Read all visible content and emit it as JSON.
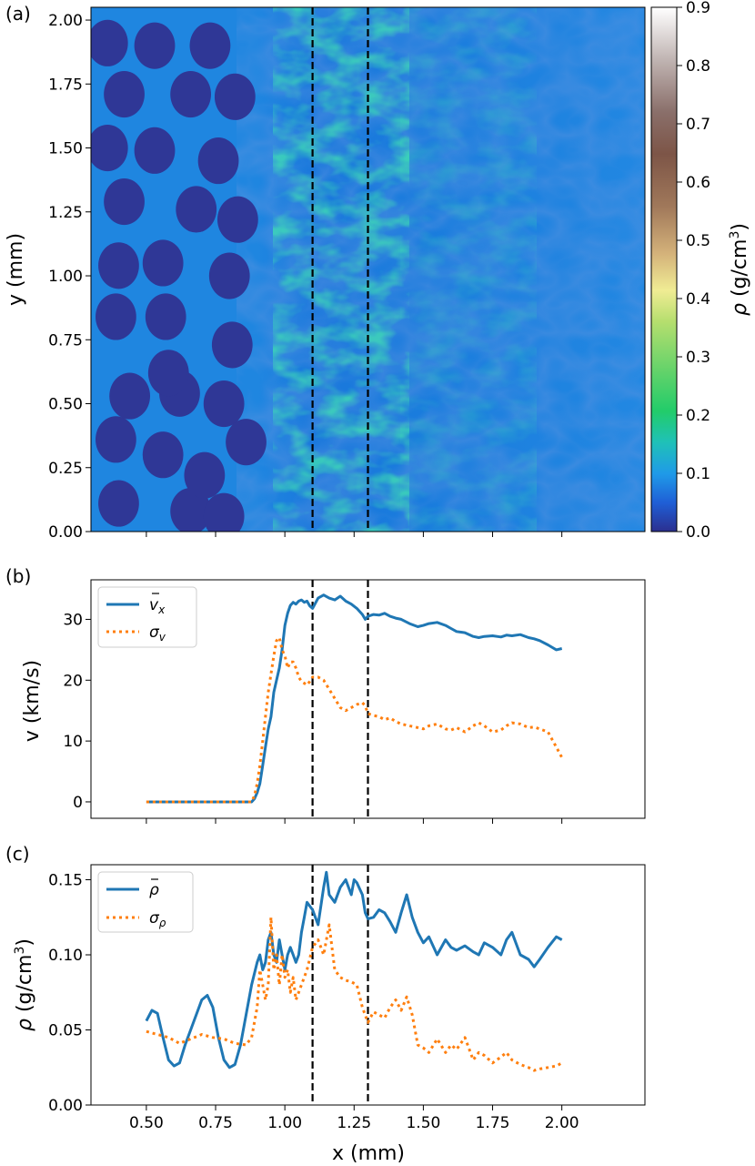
{
  "chart_data": [
    {
      "type": "heatmap",
      "panel_label": "(a)",
      "ylabel": "y (mm)",
      "ylim": [
        0.0,
        2.05
      ],
      "xlim": [
        0.3,
        2.3
      ],
      "yticks": [
        "0.00",
        "0.25",
        "0.50",
        "0.75",
        "1.00",
        "1.25",
        "1.50",
        "1.75",
        "2.00"
      ],
      "ytick_values": [
        0.0,
        0.25,
        0.5,
        0.75,
        1.0,
        1.25,
        1.5,
        1.75,
        2.0
      ],
      "colorbar": {
        "label_symbol": "ρ",
        "label_text": " (g/cm",
        "label_sup": "3",
        "label_close": ")",
        "range": [
          0.0,
          0.9
        ],
        "ticks": [
          "0.0",
          "0.1",
          "0.2",
          "0.3",
          "0.4",
          "0.5",
          "0.6",
          "0.7",
          "0.8",
          "0.9"
        ],
        "tick_values": [
          0.0,
          0.1,
          0.2,
          0.3,
          0.4,
          0.5,
          0.6,
          0.7,
          0.8,
          0.9
        ]
      },
      "vlines_x": [
        1.1,
        1.3
      ],
      "particles": [
        {
          "x": 0.36,
          "y": 1.91
        },
        {
          "x": 0.36,
          "y": 1.5
        },
        {
          "x": 0.4,
          "y": 1.04
        },
        {
          "x": 0.39,
          "y": 0.84
        },
        {
          "x": 0.44,
          "y": 0.53
        },
        {
          "x": 0.4,
          "y": 0.11
        },
        {
          "x": 0.39,
          "y": 0.36
        },
        {
          "x": 0.42,
          "y": 1.71
        },
        {
          "x": 0.42,
          "y": 1.29
        },
        {
          "x": 0.53,
          "y": 1.9
        },
        {
          "x": 0.53,
          "y": 1.49
        },
        {
          "x": 0.56,
          "y": 1.05
        },
        {
          "x": 0.56,
          "y": 0.3
        },
        {
          "x": 0.62,
          "y": 0.54
        },
        {
          "x": 0.58,
          "y": 0.62
        },
        {
          "x": 0.57,
          "y": 0.84
        },
        {
          "x": 0.66,
          "y": 0.08
        },
        {
          "x": 0.66,
          "y": 1.71
        },
        {
          "x": 0.68,
          "y": 1.26
        },
        {
          "x": 0.71,
          "y": 0.22
        },
        {
          "x": 0.78,
          "y": 0.06
        },
        {
          "x": 0.73,
          "y": 1.9
        },
        {
          "x": 0.76,
          "y": 1.45
        },
        {
          "x": 0.78,
          "y": 0.5
        },
        {
          "x": 0.81,
          "y": 0.73
        },
        {
          "x": 0.8,
          "y": 1.0
        },
        {
          "x": 0.83,
          "y": 1.22
        },
        {
          "x": 0.82,
          "y": 1.7
        },
        {
          "x": 0.86,
          "y": 0.35
        }
      ]
    },
    {
      "type": "line",
      "panel_label": "(b)",
      "ylabel": "v (km/s)",
      "xlim": [
        0.3,
        2.3
      ],
      "ylim": [
        -2.7,
        36.5
      ],
      "yticks": [
        "0",
        "10",
        "20",
        "30"
      ],
      "ytick_values": [
        0,
        10,
        20,
        30
      ],
      "vlines_x": [
        1.1,
        1.3
      ],
      "series": [
        {
          "name": "v_x mean",
          "legend_base": "v",
          "legend_sub": "x",
          "style": "solid",
          "color": "#1f77b4",
          "x": [
            0.5,
            0.88,
            0.89,
            0.9,
            0.91,
            0.92,
            0.93,
            0.94,
            0.95,
            0.96,
            0.97,
            0.98,
            0.99,
            1.0,
            1.01,
            1.02,
            1.03,
            1.04,
            1.05,
            1.06,
            1.07,
            1.08,
            1.09,
            1.1,
            1.12,
            1.14,
            1.16,
            1.18,
            1.2,
            1.22,
            1.24,
            1.26,
            1.28,
            1.29,
            1.3,
            1.32,
            1.34,
            1.36,
            1.38,
            1.4,
            1.42,
            1.45,
            1.48,
            1.5,
            1.52,
            1.55,
            1.58,
            1.6,
            1.62,
            1.65,
            1.68,
            1.7,
            1.72,
            1.75,
            1.78,
            1.8,
            1.82,
            1.85,
            1.88,
            1.9,
            1.92,
            1.95,
            1.98,
            2.0
          ],
          "y": [
            0,
            0,
            0.5,
            1.5,
            3,
            6,
            9,
            12,
            14,
            18,
            20,
            22,
            25,
            29,
            31,
            32.3,
            32.8,
            32.5,
            33,
            33.2,
            32.8,
            33,
            32.2,
            31.8,
            33.5,
            34,
            33.5,
            33.2,
            33.8,
            33,
            32.5,
            31.8,
            30.8,
            30,
            30.5,
            30.8,
            30.7,
            31,
            30.5,
            30.2,
            30,
            29.3,
            28.8,
            29,
            29.3,
            29.5,
            29,
            28.5,
            28,
            27.8,
            27.2,
            27,
            27.2,
            27.3,
            27.1,
            27.4,
            27.3,
            27.5,
            27,
            26.8,
            26.5,
            25.8,
            25,
            25.2
          ]
        },
        {
          "name": "sigma_v",
          "legend_base": "σ",
          "legend_sub": "v",
          "style": "dotted",
          "color": "#ff7f0e",
          "x": [
            0.5,
            0.88,
            0.89,
            0.9,
            0.91,
            0.92,
            0.93,
            0.94,
            0.95,
            0.96,
            0.97,
            0.98,
            0.99,
            1.0,
            1.01,
            1.02,
            1.03,
            1.04,
            1.05,
            1.06,
            1.07,
            1.08,
            1.09,
            1.1,
            1.12,
            1.14,
            1.16,
            1.18,
            1.2,
            1.22,
            1.24,
            1.26,
            1.28,
            1.29,
            1.3,
            1.32,
            1.34,
            1.36,
            1.38,
            1.4,
            1.42,
            1.45,
            1.48,
            1.5,
            1.52,
            1.55,
            1.58,
            1.6,
            1.62,
            1.65,
            1.68,
            1.7,
            1.72,
            1.75,
            1.78,
            1.8,
            1.82,
            1.85,
            1.88,
            1.9,
            1.92,
            1.95,
            1.98,
            2.0
          ],
          "y": [
            0,
            0,
            1,
            3,
            6,
            10,
            14,
            18,
            21,
            24,
            26.5,
            27,
            25,
            24,
            22,
            23,
            23,
            22,
            20.5,
            19.8,
            19.5,
            19.2,
            19.8,
            20.5,
            20.5,
            20,
            18.5,
            17,
            15.5,
            15,
            15.5,
            16,
            16.3,
            15.8,
            14.5,
            14.2,
            14,
            13.5,
            13.8,
            13.2,
            12.8,
            12.5,
            12.2,
            12,
            12.5,
            12.8,
            12,
            11.8,
            12.2,
            11.5,
            12.5,
            13,
            12.5,
            11.5,
            11.8,
            12.5,
            13,
            12.8,
            12.2,
            12.3,
            12,
            11.5,
            9,
            7.3
          ]
        }
      ]
    },
    {
      "type": "line",
      "panel_label": "(c)",
      "ylabel_symbol": "ρ",
      "ylabel_text": " (g/cm",
      "ylabel_sup": "3",
      "ylabel_close": ")",
      "xlabel": "x (mm)",
      "xlim": [
        0.3,
        2.3
      ],
      "ylim": [
        0.0,
        0.16
      ],
      "xticks": [
        "0.50",
        "0.75",
        "1.00",
        "1.25",
        "1.50",
        "1.75",
        "2.00"
      ],
      "xtick_values": [
        0.5,
        0.75,
        1.0,
        1.25,
        1.5,
        1.75,
        2.0
      ],
      "yticks": [
        "0.00",
        "0.05",
        "0.10",
        "0.15"
      ],
      "ytick_values": [
        0.0,
        0.05,
        0.1,
        0.15
      ],
      "vlines_x": [
        1.1,
        1.3
      ],
      "series": [
        {
          "name": "rho mean",
          "legend_base": "ρ",
          "legend_sub": "",
          "style": "solid",
          "color": "#1f77b4",
          "x": [
            0.5,
            0.52,
            0.54,
            0.56,
            0.58,
            0.6,
            0.62,
            0.64,
            0.66,
            0.68,
            0.7,
            0.72,
            0.74,
            0.76,
            0.78,
            0.8,
            0.82,
            0.84,
            0.86,
            0.88,
            0.9,
            0.91,
            0.92,
            0.93,
            0.94,
            0.95,
            0.96,
            0.97,
            0.98,
            0.99,
            1.0,
            1.01,
            1.02,
            1.03,
            1.04,
            1.05,
            1.06,
            1.07,
            1.08,
            1.1,
            1.12,
            1.14,
            1.15,
            1.16,
            1.18,
            1.2,
            1.22,
            1.24,
            1.25,
            1.26,
            1.28,
            1.29,
            1.3,
            1.32,
            1.34,
            1.36,
            1.38,
            1.4,
            1.42,
            1.44,
            1.46,
            1.48,
            1.5,
            1.52,
            1.55,
            1.58,
            1.6,
            1.62,
            1.65,
            1.68,
            1.7,
            1.72,
            1.75,
            1.78,
            1.8,
            1.82,
            1.85,
            1.88,
            1.9,
            1.92,
            1.95,
            1.98,
            2.0
          ],
          "y": [
            0.056,
            0.063,
            0.061,
            0.045,
            0.03,
            0.026,
            0.028,
            0.04,
            0.05,
            0.06,
            0.07,
            0.073,
            0.065,
            0.045,
            0.03,
            0.025,
            0.027,
            0.04,
            0.06,
            0.08,
            0.095,
            0.1,
            0.09,
            0.095,
            0.11,
            0.115,
            0.1,
            0.095,
            0.11,
            0.1,
            0.09,
            0.1,
            0.105,
            0.1,
            0.095,
            0.1,
            0.115,
            0.125,
            0.135,
            0.13,
            0.12,
            0.145,
            0.155,
            0.14,
            0.135,
            0.145,
            0.15,
            0.14,
            0.15,
            0.148,
            0.14,
            0.128,
            0.124,
            0.125,
            0.13,
            0.128,
            0.122,
            0.115,
            0.128,
            0.14,
            0.125,
            0.115,
            0.108,
            0.112,
            0.1,
            0.11,
            0.105,
            0.103,
            0.106,
            0.102,
            0.1,
            0.108,
            0.105,
            0.1,
            0.11,
            0.115,
            0.1,
            0.097,
            0.092,
            0.097,
            0.105,
            0.112,
            0.11
          ]
        },
        {
          "name": "sigma_rho",
          "legend_base": "σ",
          "legend_sub": "ρ",
          "style": "dotted",
          "color": "#ff7f0e",
          "x": [
            0.5,
            0.54,
            0.58,
            0.62,
            0.66,
            0.7,
            0.74,
            0.78,
            0.82,
            0.86,
            0.88,
            0.9,
            0.91,
            0.92,
            0.93,
            0.94,
            0.95,
            0.96,
            0.97,
            0.98,
            0.99,
            1.0,
            1.01,
            1.02,
            1.03,
            1.04,
            1.06,
            1.08,
            1.1,
            1.12,
            1.14,
            1.16,
            1.18,
            1.2,
            1.22,
            1.24,
            1.26,
            1.28,
            1.3,
            1.32,
            1.34,
            1.36,
            1.38,
            1.4,
            1.42,
            1.44,
            1.46,
            1.48,
            1.5,
            1.52,
            1.55,
            1.58,
            1.6,
            1.62,
            1.65,
            1.68,
            1.7,
            1.72,
            1.75,
            1.78,
            1.8,
            1.82,
            1.85,
            1.88,
            1.9,
            1.92,
            1.95,
            1.98,
            2.0
          ],
          "y": [
            0.049,
            0.047,
            0.045,
            0.041,
            0.044,
            0.047,
            0.045,
            0.044,
            0.041,
            0.04,
            0.045,
            0.065,
            0.09,
            0.08,
            0.07,
            0.08,
            0.125,
            0.09,
            0.1,
            0.08,
            0.1,
            0.085,
            0.09,
            0.075,
            0.085,
            0.07,
            0.08,
            0.09,
            0.105,
            0.11,
            0.1,
            0.12,
            0.09,
            0.085,
            0.083,
            0.082,
            0.08,
            0.065,
            0.055,
            0.062,
            0.06,
            0.058,
            0.065,
            0.07,
            0.063,
            0.072,
            0.06,
            0.04,
            0.038,
            0.035,
            0.044,
            0.035,
            0.04,
            0.037,
            0.045,
            0.03,
            0.035,
            0.033,
            0.028,
            0.032,
            0.035,
            0.03,
            0.027,
            0.025,
            0.023,
            0.024,
            0.025,
            0.026,
            0.028
          ]
        }
      ]
    }
  ]
}
